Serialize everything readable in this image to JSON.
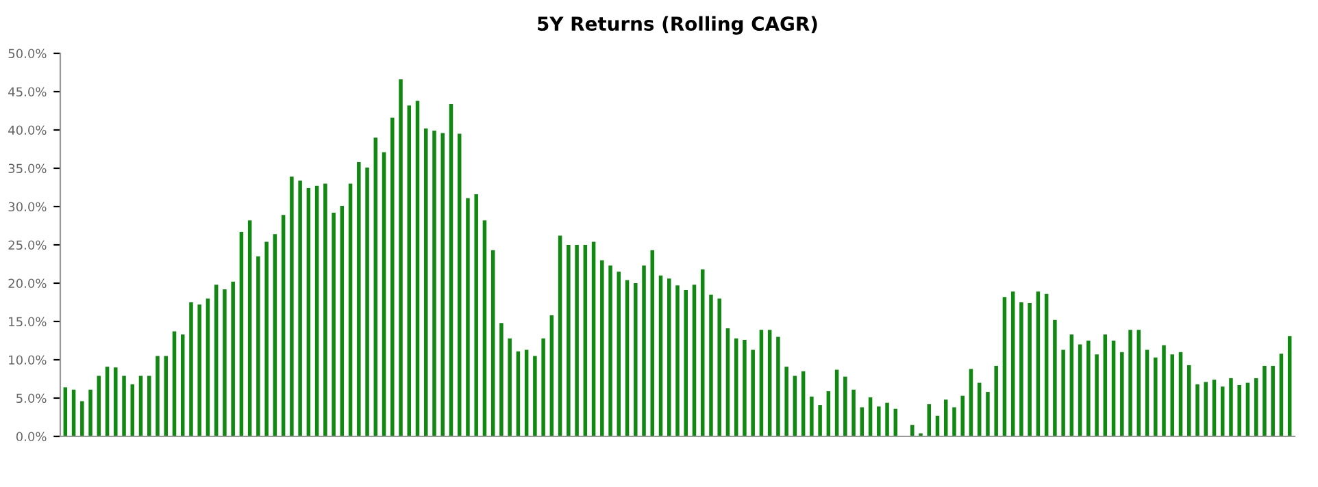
{
  "chart_data": {
    "type": "bar",
    "title": "5Y Returns (Rolling CAGR)",
    "categories": [
      null,
      null,
      null,
      null,
      null,
      null,
      null,
      null,
      null,
      null,
      null,
      null,
      null,
      null,
      null,
      null,
      null,
      null,
      null,
      null,
      null,
      null,
      null,
      null,
      null,
      null,
      null,
      null,
      null,
      null,
      null,
      null,
      null,
      null,
      null,
      null,
      null,
      null,
      null,
      null,
      null,
      null,
      null,
      null,
      null,
      null,
      null,
      null,
      null,
      null,
      null,
      null,
      null,
      null,
      null,
      null,
      null,
      null,
      null,
      null,
      null,
      null,
      null,
      null,
      null,
      null,
      null,
      null,
      null,
      null,
      null,
      null,
      null,
      null,
      null,
      null,
      null,
      null,
      null,
      null,
      null,
      null,
      null,
      null,
      null,
      null,
      null,
      null,
      null,
      null,
      null,
      null,
      null,
      null,
      null,
      null,
      null,
      null,
      null,
      null,
      null,
      null,
      null,
      null,
      null,
      null,
      null,
      null,
      null,
      null,
      null,
      null,
      null,
      null,
      null,
      null,
      null,
      null,
      null,
      null,
      null,
      null,
      null,
      null,
      null,
      null,
      null,
      null,
      null,
      null,
      null,
      null,
      null,
      null,
      null,
      null,
      null,
      null,
      null,
      null,
      null,
      null,
      null,
      null,
      null,
      null,
      null
    ],
    "values": [
      6.4,
      6.1,
      4.6,
      6.1,
      7.9,
      9.1,
      9.0,
      7.9,
      6.8,
      7.9,
      7.9,
      10.5,
      10.5,
      13.7,
      13.3,
      17.5,
      17.2,
      18.0,
      19.8,
      19.2,
      20.2,
      26.7,
      28.2,
      23.5,
      25.4,
      26.4,
      28.9,
      33.9,
      33.4,
      32.4,
      32.7,
      33.0,
      29.2,
      30.1,
      33.0,
      35.8,
      35.1,
      39.0,
      37.1,
      41.6,
      46.6,
      43.2,
      43.8,
      40.2,
      39.9,
      39.6,
      43.4,
      39.5,
      31.1,
      31.6,
      28.2,
      24.3,
      14.8,
      12.8,
      11.1,
      11.3,
      10.5,
      12.8,
      15.8,
      26.2,
      25.0,
      25.0,
      25.0,
      25.4,
      23.0,
      22.3,
      21.5,
      20.4,
      20.0,
      22.3,
      24.3,
      21.0,
      20.6,
      19.7,
      19.1,
      19.8,
      21.8,
      18.5,
      18.0,
      14.1,
      12.8,
      12.6,
      11.3,
      13.9,
      13.9,
      13.0,
      9.1,
      7.9,
      8.5,
      5.2,
      4.1,
      5.9,
      8.7,
      7.8,
      6.1,
      3.8,
      5.1,
      3.9,
      4.4,
      3.6,
      0,
      1.5,
      0.4,
      4.2,
      2.7,
      4.8,
      3.8,
      5.3,
      8.8,
      7.0,
      5.8,
      9.2,
      18.2,
      18.9,
      17.5,
      17.4,
      18.9,
      18.6,
      15.2,
      11.3,
      13.3,
      12.0,
      12.5,
      10.7,
      13.3,
      12.5,
      11.0,
      13.9,
      13.9,
      11.3,
      10.3,
      11.9,
      10.7,
      11.0,
      9.3,
      6.8,
      7.1,
      7.4,
      6.5,
      7.6,
      6.7,
      7.0,
      7.6,
      9.2,
      9.2,
      10.8,
      13.1
    ],
    "color": "#118811",
    "ylim": [
      0,
      50
    ],
    "yticks": [
      {
        "value": 0,
        "label": "0.0%"
      },
      {
        "value": 5,
        "label": "5.0%"
      },
      {
        "value": 10,
        "label": "10.0%"
      },
      {
        "value": 15,
        "label": "15.0%"
      },
      {
        "value": 20,
        "label": "20.0%"
      },
      {
        "value": 25,
        "label": "25.0%"
      },
      {
        "value": 30,
        "label": "30.0%"
      },
      {
        "value": 35,
        "label": "35.0%"
      },
      {
        "value": 40,
        "label": "40.0%"
      },
      {
        "value": 45,
        "label": "45.0%"
      },
      {
        "value": 50,
        "label": "50.0%"
      }
    ],
    "grid": false,
    "legend": false
  }
}
